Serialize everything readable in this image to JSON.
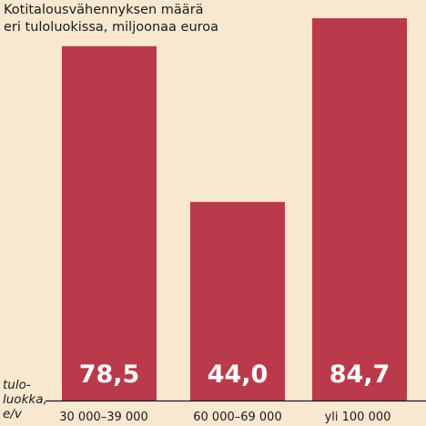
{
  "chart_data": {
    "type": "bar",
    "title": [
      "Kotitalousvähennyksen määrä",
      "eri tuloluokissa, miljoonaa euroa"
    ],
    "xlabel": [
      "tulo-",
      "luokka,",
      "e/v"
    ],
    "ylabel": "",
    "categories": [
      "30 000–39 000",
      "60 000–69 000",
      "yli 100 000"
    ],
    "values": [
      78.5,
      44.0,
      84.7
    ],
    "value_labels": [
      "78,5",
      "44,0",
      "84,7"
    ],
    "ylim": [
      0,
      84.7
    ],
    "grid": false,
    "legend": "none",
    "colors": {
      "bar": "#ba3a4c",
      "background": "#f8e8d0",
      "text": "#1a1a1a",
      "value_text": "#ffffff"
    }
  }
}
